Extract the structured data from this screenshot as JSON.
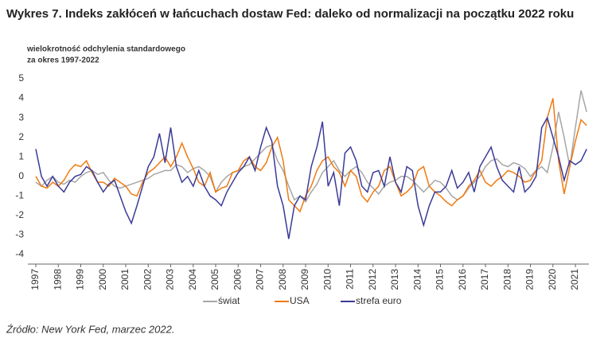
{
  "chart_data": {
    "type": "line",
    "title": "Wykres 7. Indeks zakłóceń w łańcuchach dostaw Fed: daleko od normalizacji na początku 2022 roku",
    "y_label": [
      "wielokrotność odchylenia standardowego",
      "za okres 1997-2022"
    ],
    "source": "Źródło: New York Fed, marzec 2022.",
    "x": [
      1997,
      1997.25,
      1997.5,
      1997.75,
      1998,
      1998.25,
      1998.5,
      1998.75,
      1999,
      1999.25,
      1999.5,
      1999.75,
      2000,
      2000.25,
      2000.5,
      2000.75,
      2001,
      2001.25,
      2001.5,
      2001.75,
      2002,
      2002.25,
      2002.5,
      2002.75,
      2003,
      2003.25,
      2003.5,
      2003.75,
      2004,
      2004.25,
      2004.5,
      2004.75,
      2005,
      2005.25,
      2005.5,
      2005.75,
      2006,
      2006.25,
      2006.5,
      2006.75,
      2007,
      2007.25,
      2007.5,
      2007.75,
      2008,
      2008.25,
      2008.5,
      2008.75,
      2009,
      2009.25,
      2009.5,
      2009.75,
      2010,
      2010.25,
      2010.5,
      2010.75,
      2011,
      2011.25,
      2011.5,
      2011.75,
      2012,
      2012.25,
      2012.5,
      2012.75,
      2013,
      2013.25,
      2013.5,
      2013.75,
      2014,
      2014.25,
      2014.5,
      2014.75,
      2015,
      2015.25,
      2015.5,
      2015.75,
      2016,
      2016.25,
      2016.5,
      2016.75,
      2017,
      2017.25,
      2017.5,
      2017.75,
      2018,
      2018.25,
      2018.5,
      2018.75,
      2019,
      2019.25,
      2019.5,
      2019.75,
      2020,
      2020.25,
      2020.5,
      2020.75,
      2021,
      2021.25,
      2021.5
    ],
    "series": [
      {
        "name": "świat",
        "color": "#a6a6a6",
        "values": [
          -0.3,
          -0.5,
          -0.2,
          0.0,
          -0.3,
          -0.4,
          -0.2,
          -0.3,
          0.0,
          0.2,
          0.3,
          0.1,
          0.2,
          -0.2,
          -0.5,
          -0.6,
          -0.5,
          -0.4,
          -0.3,
          -0.2,
          -0.1,
          0.1,
          0.2,
          0.3,
          0.3,
          0.6,
          0.5,
          0.2,
          0.4,
          0.5,
          0.3,
          0.0,
          -0.8,
          -0.3,
          0.0,
          0.2,
          0.3,
          0.5,
          0.6,
          0.9,
          1.2,
          1.5,
          1.6,
          0.8,
          0.3,
          -0.5,
          -1.2,
          -1.0,
          -1.3,
          -0.8,
          -0.4,
          0.2,
          0.5,
          0.8,
          0.3,
          0.0,
          0.3,
          0.5,
          0.2,
          -0.3,
          -0.6,
          -0.9,
          -0.5,
          -0.3,
          -0.2,
          0.0,
          0.0,
          -0.2,
          -0.5,
          -0.8,
          -0.5,
          -0.2,
          -0.3,
          -0.6,
          -1.0,
          -1.2,
          -1.0,
          -0.6,
          -0.3,
          0.0,
          0.5,
          0.8,
          0.9,
          0.6,
          0.5,
          0.7,
          0.6,
          0.4,
          0.0,
          0.3,
          0.5,
          0.2,
          1.5,
          3.3,
          2.0,
          0.5,
          2.5,
          4.4,
          3.3
        ]
      },
      {
        "name": "USA",
        "color": "#f07a10",
        "values": [
          0.0,
          -0.5,
          -0.6,
          -0.3,
          -0.5,
          -0.2,
          0.3,
          0.6,
          0.5,
          0.8,
          0.2,
          -0.3,
          -0.3,
          -0.5,
          -0.1,
          -0.3,
          -0.5,
          -0.9,
          -1.0,
          -0.3,
          0.2,
          0.4,
          0.7,
          1.0,
          0.5,
          1.0,
          1.7,
          1.0,
          0.4,
          -0.3,
          -0.5,
          0.2,
          -0.8,
          -0.6,
          -0.5,
          0.2,
          0.3,
          0.8,
          1.0,
          0.5,
          0.3,
          0.7,
          1.5,
          2.0,
          0.8,
          -1.2,
          -1.5,
          -1.8,
          -1.0,
          -0.5,
          0.3,
          0.8,
          1.0,
          0.5,
          0.2,
          -0.5,
          0.3,
          0.0,
          -1.0,
          -1.3,
          -0.8,
          -0.5,
          0.3,
          0.5,
          -0.3,
          -1.0,
          -0.8,
          -0.5,
          0.3,
          0.5,
          -0.5,
          -0.8,
          -1.0,
          -1.3,
          -1.5,
          -1.2,
          -1.0,
          -0.5,
          -0.2,
          0.3,
          -0.3,
          -0.5,
          -0.2,
          0.0,
          0.3,
          0.2,
          0.0,
          -0.3,
          -0.2,
          0.3,
          0.8,
          3.0,
          4.0,
          0.8,
          -0.9,
          0.5,
          1.8,
          2.9,
          2.6
        ]
      },
      {
        "name": "strefa euro",
        "color": "#3b3a98",
        "values": [
          1.4,
          0.0,
          -0.5,
          0.0,
          -0.5,
          -0.8,
          -0.3,
          0.0,
          0.1,
          0.5,
          0.3,
          -0.3,
          -0.8,
          -0.4,
          -0.2,
          -1.0,
          -1.8,
          -2.4,
          -1.5,
          -0.5,
          0.5,
          1.0,
          2.2,
          0.7,
          2.5,
          0.5,
          -0.3,
          0.0,
          -0.5,
          0.3,
          -0.5,
          -1.0,
          -1.2,
          -1.5,
          -0.8,
          -0.3,
          0.2,
          0.5,
          1.0,
          0.3,
          1.5,
          2.5,
          1.8,
          -0.5,
          -1.5,
          -3.2,
          -1.5,
          -1.0,
          -1.2,
          0.5,
          1.5,
          2.8,
          -0.5,
          0.2,
          -1.5,
          1.2,
          1.5,
          0.8,
          -0.5,
          -0.8,
          0.2,
          0.3,
          -0.5,
          1.0,
          -0.3,
          -0.8,
          0.5,
          0.3,
          -1.5,
          -2.5,
          -1.5,
          -0.8,
          -0.8,
          -0.5,
          0.3,
          -0.6,
          -0.3,
          0.2,
          -0.8,
          0.5,
          1.0,
          1.5,
          0.5,
          -0.2,
          -0.5,
          -0.8,
          0.5,
          -0.8,
          -0.5,
          0.0,
          2.5,
          3.0,
          2.0,
          1.0,
          -0.2,
          0.8,
          0.6,
          0.8,
          1.4
        ]
      }
    ],
    "xlim": [
      1997,
      2021.6
    ],
    "ylim": [
      -4,
      5
    ],
    "xticks": [
      1997,
      1998,
      1999,
      2000,
      2001,
      2002,
      2003,
      2004,
      2005,
      2006,
      2007,
      2008,
      2009,
      2010,
      2011,
      2012,
      2013,
      2014,
      2015,
      2016,
      2017,
      2018,
      2019,
      2020,
      2021
    ],
    "yticks": [
      -4,
      -3,
      -2,
      -1,
      0,
      1,
      2,
      3,
      4,
      5
    ],
    "legend": "bottom"
  }
}
